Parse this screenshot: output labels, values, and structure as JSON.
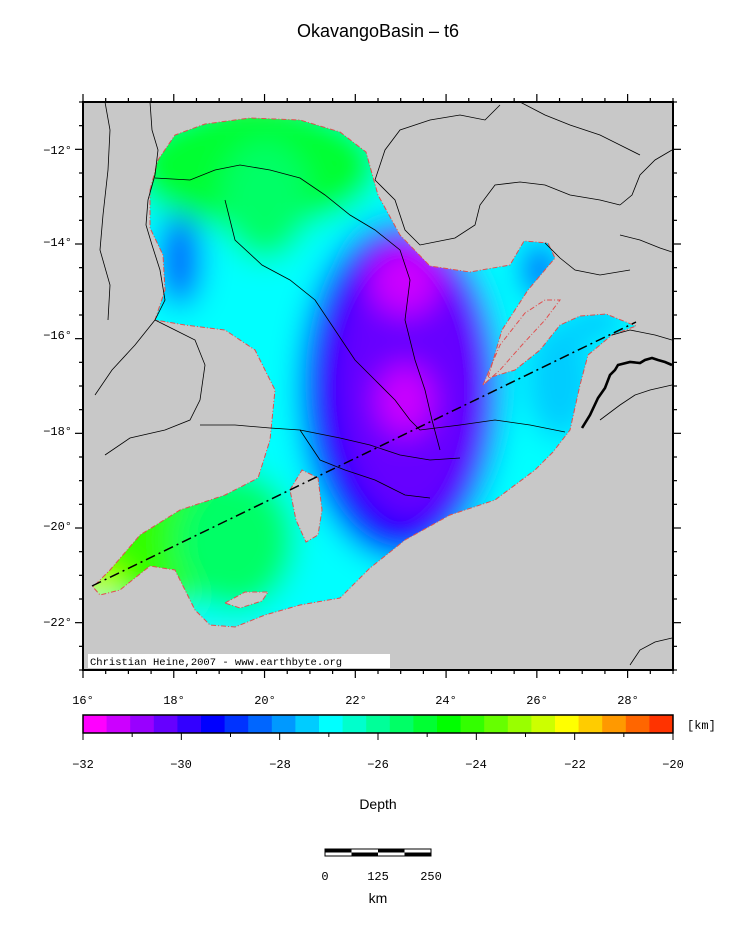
{
  "title": "OkavangoBasin – t6",
  "map": {
    "lon_ticks": [
      "16°",
      "18°",
      "20°",
      "22°",
      "24°",
      "26°",
      "28°"
    ],
    "lat_ticks": [
      "−12°",
      "−14°",
      "−16°",
      "−18°",
      "−20°",
      "−22°"
    ],
    "lon_range": [
      16,
      29
    ],
    "lat_range": [
      -23,
      -11
    ],
    "credit": "Christian Heine,2007 - www.earthbyte.org",
    "land_color": "#c8c8c8"
  },
  "colorbar": {
    "unit": "[km]",
    "tick_labels": [
      "−32",
      "−30",
      "−28",
      "−26",
      "−24",
      "−22",
      "−20"
    ],
    "range": [
      -32,
      -20
    ],
    "title": "Depth",
    "colors": [
      "#ff00ff",
      "#cc00ff",
      "#9900ff",
      "#6600ff",
      "#3300ff",
      "#0000ff",
      "#0033ff",
      "#0066ff",
      "#0099ff",
      "#00ccff",
      "#00ffff",
      "#00ffcc",
      "#00ff99",
      "#00ff66",
      "#00ff33",
      "#00ff00",
      "#33ff00",
      "#66ff00",
      "#99ff00",
      "#ccff00",
      "#ffff00",
      "#ffcc00",
      "#ff9900",
      "#ff6600",
      "#ff3300"
    ]
  },
  "scalebar": {
    "labels": [
      "0",
      "125",
      "250"
    ],
    "unit": "km"
  }
}
